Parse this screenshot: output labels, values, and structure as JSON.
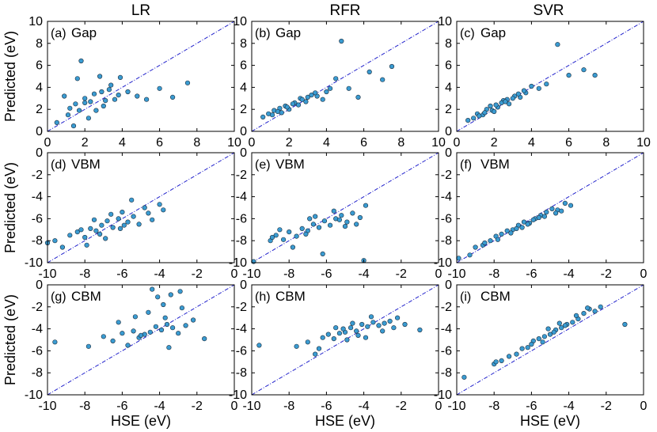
{
  "figure": {
    "column_titles": [
      "LR",
      "RFR",
      "SVR"
    ],
    "row_ylabel": "Predicted (eV)",
    "bottom_xlabel": "HSE (eV)",
    "marker_color": "#3a9bd1",
    "marker_edge_color": "#1a2a3a",
    "diagonal_color": "#2222cc"
  },
  "chart_data": [
    {
      "id": "a",
      "type": "scatter",
      "panel_label": "(a)",
      "title": "Gap",
      "model": "LR",
      "x_range": [
        0,
        10
      ],
      "y_range": [
        0,
        10
      ],
      "x_ticks": [
        "0",
        "2",
        "4",
        "6",
        "8",
        "10"
      ],
      "y_ticks": [
        "0",
        "2",
        "4",
        "6",
        "8",
        "10"
      ],
      "xlabel": "",
      "ylabel": "Predicted (eV)",
      "diagonal": true,
      "x": [
        0.5,
        0.9,
        1.1,
        1.4,
        1.6,
        1.8,
        2.0,
        2.2,
        2.5,
        2.8,
        3.0,
        3.3,
        3.6,
        3.9,
        4.3,
        4.8,
        5.3,
        6.0,
        6.7,
        7.5,
        1.2,
        1.5,
        1.7,
        2.0,
        2.3,
        2.6,
        2.9,
        3.1,
        3.4,
        3.8
      ],
      "y": [
        0.8,
        3.2,
        1.5,
        0.5,
        4.8,
        6.4,
        2.6,
        1.2,
        3.4,
        5.0,
        2.3,
        3.8,
        2.9,
        4.9,
        3.6,
        3.2,
        2.9,
        3.9,
        3.1,
        4.4,
        2.1,
        2.5,
        1.9,
        3.0,
        2.7,
        1.9,
        3.6,
        2.8,
        4.2,
        3.3
      ]
    },
    {
      "id": "b",
      "type": "scatter",
      "panel_label": "(b)",
      "title": "Gap",
      "model": "RFR",
      "x_range": [
        0,
        10
      ],
      "y_range": [
        0,
        10
      ],
      "x_ticks": [
        "0",
        "2",
        "4",
        "6",
        "8",
        "10"
      ],
      "y_ticks": [
        "0",
        "2",
        "4",
        "6",
        "8",
        "10"
      ],
      "xlabel": "",
      "ylabel": "",
      "diagonal": true,
      "x": [
        0.6,
        0.9,
        1.2,
        1.5,
        1.8,
        2.0,
        2.3,
        2.6,
        2.9,
        3.2,
        3.5,
        3.8,
        4.2,
        4.5,
        4.8,
        5.2,
        5.7,
        6.3,
        7.0,
        7.5,
        1.1,
        1.4,
        1.9,
        2.2,
        2.7,
        3.0,
        3.4,
        4.0,
        1.6,
        2.5
      ],
      "y": [
        1.3,
        1.6,
        1.9,
        2.1,
        2.3,
        2.0,
        2.6,
        3.0,
        2.7,
        3.3,
        3.2,
        2.9,
        3.9,
        4.8,
        8.2,
        3.9,
        3.1,
        5.4,
        4.7,
        5.9,
        1.5,
        1.8,
        2.2,
        2.5,
        2.9,
        3.1,
        3.5,
        3.6,
        1.7,
        2.4
      ]
    },
    {
      "id": "c",
      "type": "scatter",
      "panel_label": "(c)",
      "title": "Gap",
      "model": "SVR",
      "x_range": [
        0,
        10
      ],
      "y_range": [
        0,
        10
      ],
      "x_ticks": [
        "0",
        "2",
        "4",
        "6",
        "8",
        "10"
      ],
      "y_ticks": [
        "0",
        "2",
        "4",
        "6",
        "8",
        "10"
      ],
      "xlabel": "",
      "ylabel": "",
      "diagonal": true,
      "x": [
        0.6,
        0.9,
        1.1,
        1.4,
        1.6,
        1.9,
        2.2,
        2.5,
        2.8,
        3.1,
        3.4,
        3.7,
        4.0,
        4.4,
        4.8,
        5.4,
        6.0,
        6.8,
        7.4,
        1.2,
        1.5,
        1.8,
        2.1,
        2.4,
        2.7,
        3.0,
        3.3,
        3.6,
        2.0,
        2.6
      ],
      "y": [
        1.0,
        1.2,
        1.6,
        1.5,
        2.0,
        1.9,
        2.2,
        2.8,
        2.5,
        3.2,
        3.1,
        3.5,
        4.1,
        3.9,
        4.3,
        7.9,
        5.1,
        5.6,
        5.1,
        1.4,
        1.7,
        2.3,
        2.4,
        2.6,
        2.9,
        3.0,
        3.4,
        3.7,
        1.8,
        2.7
      ]
    },
    {
      "id": "d",
      "type": "scatter",
      "panel_label": "(d)",
      "title": "VBM",
      "model": "LR",
      "x_range": [
        -10,
        0
      ],
      "y_range": [
        -10,
        0
      ],
      "x_ticks": [
        "-10",
        "-8",
        "-6",
        "-4",
        "-2",
        "0"
      ],
      "y_ticks": [
        "-10",
        "-8",
        "-6",
        "-4",
        "-2",
        "0"
      ],
      "xlabel": "",
      "ylabel": "Predicted (eV)",
      "diagonal": true,
      "x": [
        -10.0,
        -9.6,
        -9.2,
        -8.8,
        -8.4,
        -8.0,
        -7.7,
        -7.4,
        -7.1,
        -6.8,
        -6.5,
        -6.2,
        -6.0,
        -5.7,
        -5.4,
        -5.1,
        -4.8,
        -4.4,
        -4.0,
        -3.8,
        -7.9,
        -7.2,
        -6.6,
        -6.1,
        -5.5,
        -8.2,
        -6.9,
        -5.9,
        -4.6,
        -7.5
      ],
      "y": [
        -8.2,
        -8.0,
        -8.6,
        -7.5,
        -7.2,
        -7.7,
        -6.9,
        -7.1,
        -6.6,
        -6.2,
        -6.8,
        -6.0,
        -5.4,
        -6.3,
        -5.8,
        -6.5,
        -5.0,
        -6.1,
        -4.7,
        -5.2,
        -8.4,
        -7.4,
        -5.6,
        -6.9,
        -4.3,
        -7.0,
        -7.8,
        -6.6,
        -5.5,
        -6.1
      ]
    },
    {
      "id": "e",
      "type": "scatter",
      "panel_label": "(e)",
      "title": "VBM",
      "model": "RFR",
      "x_range": [
        -10,
        0
      ],
      "y_range": [
        -10,
        0
      ],
      "x_ticks": [
        "-10",
        "-8",
        "-6",
        "-4",
        "-2",
        "0"
      ],
      "y_ticks": [
        "-10",
        "-8",
        "-6",
        "-4",
        "-2",
        "0"
      ],
      "xlabel": "",
      "ylabel": "",
      "diagonal": true,
      "x": [
        -9.9,
        -9.0,
        -8.7,
        -8.3,
        -8.0,
        -7.6,
        -7.3,
        -7.0,
        -6.7,
        -6.4,
        -6.1,
        -5.8,
        -5.5,
        -5.2,
        -4.9,
        -4.6,
        -4.2,
        -3.9,
        -6.2,
        -7.8,
        -8.5,
        -5.0,
        -6.9,
        -5.6,
        -4.4,
        -7.1,
        -6.6,
        -5.3,
        -8.9,
        -4.0
      ],
      "y": [
        -9.9,
        -8.0,
        -7.5,
        -7.9,
        -7.2,
        -7.6,
        -6.9,
        -7.1,
        -6.5,
        -6.8,
        -6.2,
        -6.6,
        -6.0,
        -5.7,
        -6.3,
        -5.5,
        -5.9,
        -4.8,
        -9.2,
        -8.6,
        -7.0,
        -6.7,
        -6.0,
        -5.3,
        -6.5,
        -7.4,
        -5.8,
        -6.1,
        -7.7,
        -9.8
      ]
    },
    {
      "id": "f",
      "type": "scatter",
      "panel_label": "(f)",
      "title": "VBM",
      "model": "SVR",
      "x_range": [
        -10,
        0
      ],
      "y_range": [
        -10,
        0
      ],
      "x_ticks": [
        "-10",
        "-8",
        "-6",
        "-4",
        "-2",
        "0"
      ],
      "y_ticks": [
        "-10",
        "-8",
        "-6",
        "-4",
        "-2",
        "0"
      ],
      "xlabel": "",
      "ylabel": "",
      "diagonal": true,
      "x": [
        -9.9,
        -9.3,
        -9.0,
        -8.6,
        -8.2,
        -7.9,
        -7.6,
        -7.3,
        -7.0,
        -6.7,
        -6.4,
        -6.1,
        -5.8,
        -5.5,
        -5.2,
        -4.9,
        -4.6,
        -4.2,
        -3.9,
        -8.5,
        -7.8,
        -7.1,
        -6.5,
        -5.9,
        -5.3,
        -4.7,
        -6.8,
        -6.2,
        -5.6,
        -4.4
      ],
      "y": [
        -9.6,
        -9.3,
        -8.6,
        -8.4,
        -8.0,
        -7.6,
        -7.4,
        -7.1,
        -7.0,
        -6.6,
        -6.3,
        -6.4,
        -6.0,
        -5.7,
        -5.4,
        -5.1,
        -5.2,
        -4.6,
        -4.8,
        -8.2,
        -7.9,
        -7.3,
        -6.8,
        -6.1,
        -5.8,
        -5.5,
        -6.9,
        -6.5,
        -5.9,
        -5.3
      ]
    },
    {
      "id": "g",
      "type": "scatter",
      "panel_label": "(g)",
      "title": "CBM",
      "model": "LR",
      "x_range": [
        -10,
        0
      ],
      "y_range": [
        -10,
        0
      ],
      "x_ticks": [
        "-10",
        "-8",
        "-6",
        "-4",
        "-2",
        "0"
      ],
      "y_ticks": [
        "-10",
        "-8",
        "-6",
        "-4",
        "-2",
        "0"
      ],
      "xlabel": "HSE (eV)",
      "ylabel": "Predicted (eV)",
      "diagonal": true,
      "x": [
        -9.6,
        -7.8,
        -7.0,
        -6.5,
        -6.0,
        -5.7,
        -5.4,
        -5.1,
        -4.8,
        -4.5,
        -4.2,
        -3.9,
        -3.6,
        -3.3,
        -3.0,
        -2.6,
        -2.2,
        -1.6,
        -4.6,
        -3.8,
        -3.4,
        -2.9,
        -4.1,
        -5.3,
        -6.2,
        -3.5,
        -2.8,
        -4.4,
        -3.7,
        -5.0
      ],
      "y": [
        -5.2,
        -5.6,
        -4.7,
        -5.1,
        -4.4,
        -5.5,
        -4.2,
        -4.8,
        -4.5,
        -4.3,
        -3.8,
        -4.1,
        -3.6,
        -3.9,
        -4.4,
        -3.7,
        -3.2,
        -4.9,
        -2.5,
        -1.8,
        -0.9,
        -0.6,
        -1.1,
        -2.9,
        -3.4,
        -5.7,
        -2.1,
        -0.4,
        -3.0,
        -4.6
      ]
    },
    {
      "id": "h",
      "type": "scatter",
      "panel_label": "(h)",
      "title": "CBM",
      "model": "RFR",
      "x_range": [
        -10,
        0
      ],
      "y_range": [
        -10,
        0
      ],
      "x_ticks": [
        "-10",
        "-8",
        "-6",
        "-4",
        "-2",
        "0"
      ],
      "y_ticks": [
        "-10",
        "-8",
        "-6",
        "-4",
        "-2",
        "0"
      ],
      "xlabel": "HSE (eV)",
      "ylabel": "",
      "diagonal": true,
      "x": [
        -9.6,
        -7.6,
        -7.0,
        -6.6,
        -6.2,
        -5.9,
        -5.6,
        -5.3,
        -5.0,
        -4.7,
        -4.4,
        -4.1,
        -3.8,
        -3.5,
        -3.2,
        -2.9,
        -2.6,
        -2.2,
        -1.8,
        -1.0,
        -5.5,
        -4.9,
        -4.3,
        -3.6,
        -6.4,
        -3.0,
        -2.4,
        -5.1,
        -4.6,
        -3.9
      ],
      "y": [
        -5.5,
        -5.6,
        -5.2,
        -6.3,
        -4.8,
        -4.5,
        -4.9,
        -4.4,
        -4.3,
        -3.9,
        -4.2,
        -3.6,
        -3.8,
        -3.4,
        -3.7,
        -3.5,
        -3.3,
        -3.0,
        -3.6,
        -4.1,
        -3.9,
        -5.0,
        -4.6,
        -2.9,
        -5.8,
        -4.2,
        -3.9,
        -4.0,
        -3.5,
        -4.8
      ]
    },
    {
      "id": "i",
      "type": "scatter",
      "panel_label": "(i)",
      "title": "CBM",
      "model": "SVR",
      "x_range": [
        -10,
        0
      ],
      "y_range": [
        -10,
        0
      ],
      "x_ticks": [
        "-10",
        "-8",
        "-6",
        "-4",
        "-2",
        "0"
      ],
      "y_ticks": [
        "-10",
        "-8",
        "-6",
        "-4",
        "-2",
        "0"
      ],
      "xlabel": "HSE (eV)",
      "ylabel": "",
      "diagonal": true,
      "x": [
        -9.6,
        -8.0,
        -7.6,
        -7.2,
        -6.8,
        -6.5,
        -6.2,
        -5.9,
        -5.6,
        -5.3,
        -5.0,
        -4.7,
        -4.4,
        -4.1,
        -3.8,
        -3.5,
        -3.2,
        -2.9,
        -2.6,
        -2.3,
        -1.0,
        -6.0,
        -5.4,
        -4.8,
        -4.2,
        -3.6,
        -3.0,
        -7.9,
        -5.1,
        -4.5
      ],
      "y": [
        -8.4,
        -7.2,
        -6.9,
        -6.5,
        -6.3,
        -5.8,
        -5.7,
        -5.1,
        -4.9,
        -4.7,
        -4.5,
        -4.1,
        -3.9,
        -3.6,
        -3.4,
        -3.1,
        -2.6,
        -2.2,
        -2.4,
        -2.0,
        -3.6,
        -5.4,
        -5.2,
        -4.3,
        -3.7,
        -2.8,
        -2.1,
        -7.0,
        -4.0,
        -3.5
      ]
    }
  ]
}
